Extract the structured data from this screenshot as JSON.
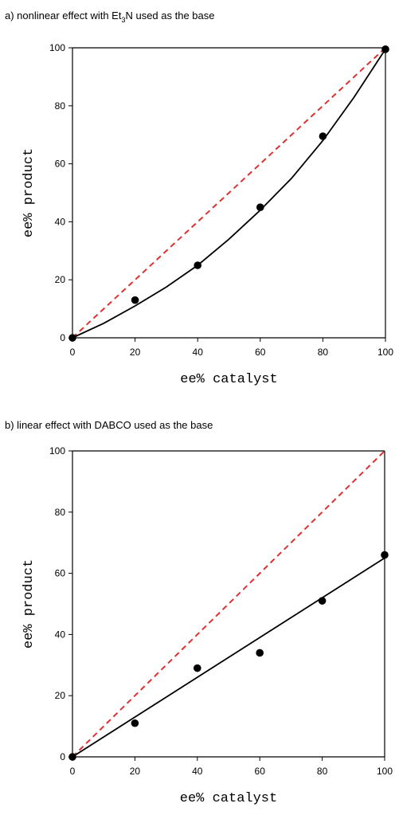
{
  "chart_data": [
    {
      "type": "scatter",
      "title_prefix": "a) nonlinear effect with Et",
      "title_sub": "3",
      "title_suffix": "N used as the base",
      "xlabel": "ee% catalyst",
      "ylabel": "ee% product",
      "xlim": [
        0,
        100
      ],
      "ylim": [
        0,
        100
      ],
      "xticks": [
        0,
        20,
        40,
        60,
        80,
        100
      ],
      "yticks": [
        0,
        20,
        40,
        60,
        80,
        100
      ],
      "points": {
        "x": [
          0,
          20,
          40,
          60,
          80,
          100
        ],
        "y": [
          0,
          13,
          25,
          45,
          69.5,
          99.5
        ]
      },
      "fit_curve": {
        "x": [
          0,
          10,
          20,
          30,
          40,
          50,
          60,
          70,
          80,
          90,
          100
        ],
        "y": [
          0,
          5,
          11,
          17.5,
          25,
          34,
          44,
          55,
          68,
          83,
          99.5
        ]
      },
      "reference_line": {
        "x": [
          0,
          100
        ],
        "y": [
          0,
          100
        ],
        "color": "#e03030"
      },
      "colors": {
        "points": "#000000",
        "fit": "#000000"
      }
    },
    {
      "type": "scatter",
      "title": "b) linear effect with DABCO used as the base",
      "xlabel": "ee% catalyst",
      "ylabel": "ee% product",
      "xlim": [
        0,
        100
      ],
      "ylim": [
        0,
        100
      ],
      "xticks": [
        0,
        20,
        40,
        60,
        80,
        100
      ],
      "yticks": [
        0,
        20,
        40,
        60,
        80,
        100
      ],
      "points": {
        "x": [
          0,
          20,
          40,
          60,
          80,
          100
        ],
        "y": [
          0,
          11,
          29,
          34,
          51,
          66
        ]
      },
      "fit_line": {
        "x": [
          0,
          100
        ],
        "y": [
          0,
          65
        ]
      },
      "reference_line": {
        "x": [
          0,
          100
        ],
        "y": [
          0,
          100
        ],
        "color": "#e03030"
      },
      "colors": {
        "points": "#000000",
        "fit": "#000000"
      }
    }
  ]
}
